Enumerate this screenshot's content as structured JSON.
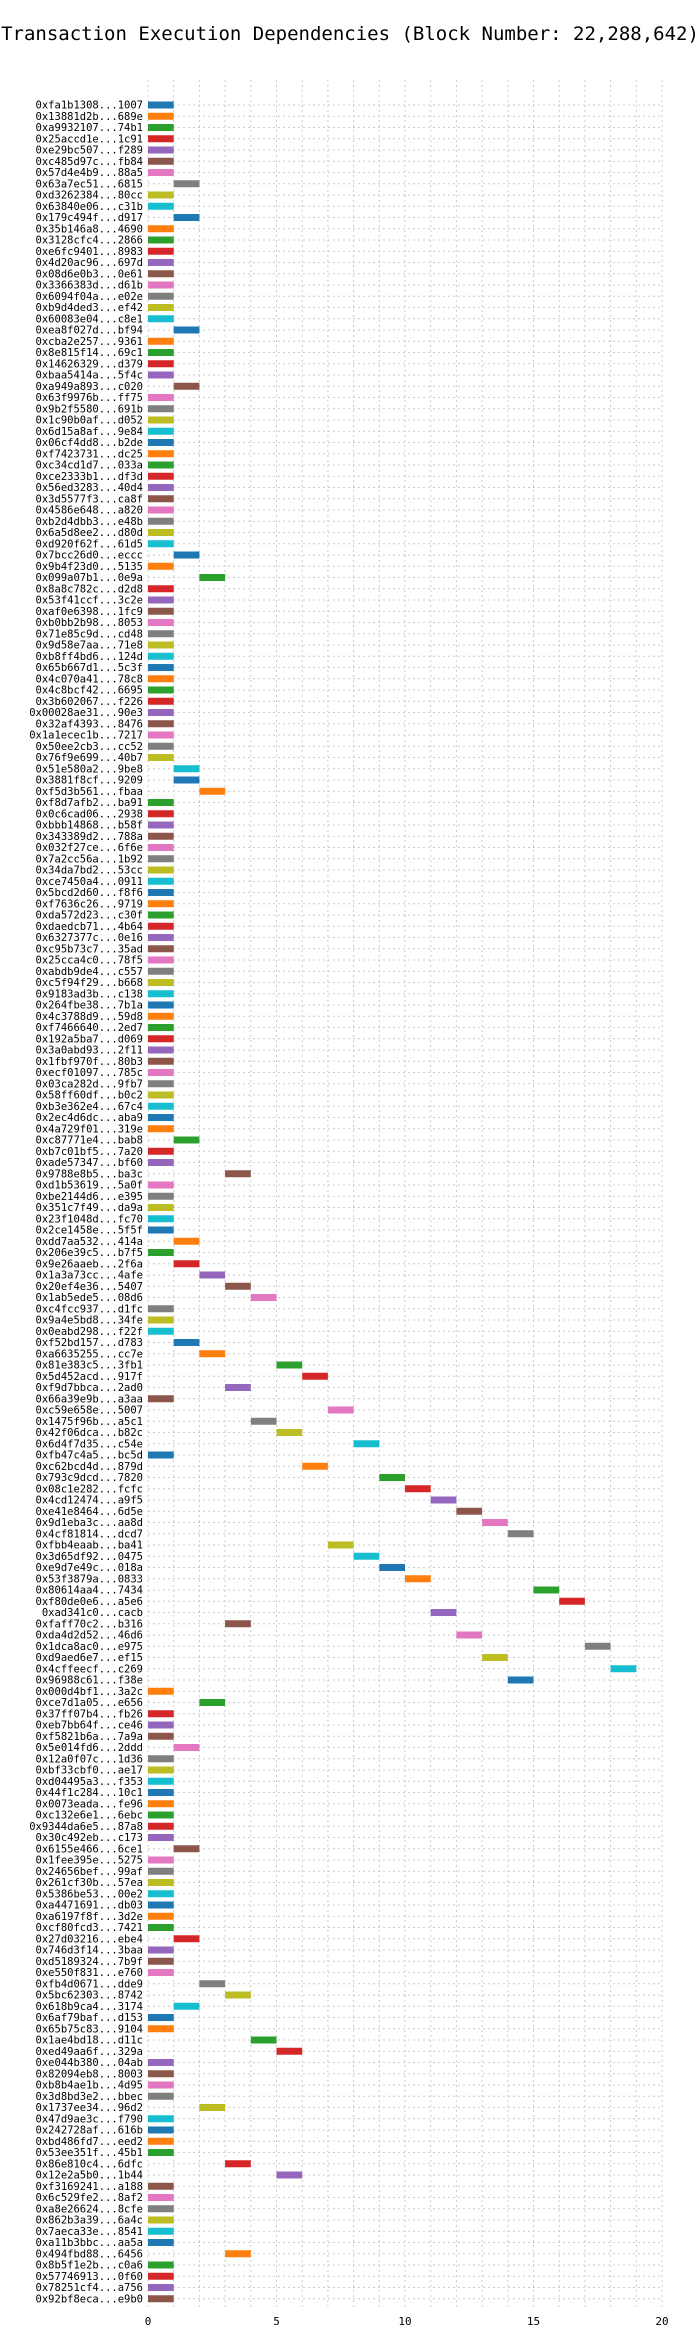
{
  "chart_data": {
    "type": "bar",
    "orientation": "horizontal",
    "title": "Transaction Execution Dependencies (Block Number: 22,288,642)",
    "xlabel": "",
    "ylabel": "",
    "xlim": [
      0,
      20
    ],
    "xticks": [
      "0",
      "5",
      "10",
      "15",
      "20"
    ],
    "grid": true,
    "palette": [
      "#1f77b4",
      "#ff7f0e",
      "#2ca02c",
      "#d62728",
      "#9467bd",
      "#8c564b",
      "#e377c2",
      "#7f7f7f",
      "#bcbd22",
      "#17becf"
    ],
    "categories": [
      "0xfa1b1308...1007",
      "0x13881d2b...689e",
      "0xa9932107...74b1",
      "0x25accd1e...1c91",
      "0xe29bc507...f289",
      "0xc485d97c...fb84",
      "0x57d4e4b9...88a5",
      "0x63a7ec51...6815",
      "0xd3262384...80cc",
      "0x63840e06...c31b",
      "0x179c494f...d917",
      "0x35b146a8...4690",
      "0x3128cfc4...2866",
      "0xe6fc9401...8983",
      "0x4d20ac96...697d",
      "0x08d6e0b3...0e61",
      "0x3366383d...d61b",
      "0x6094f04a...e02e",
      "0xb9d4ded3...ef42",
      "0x60083e04...c8e1",
      "0xea8f027d...bf94",
      "0xcba2e257...9361",
      "0x8e815f14...69c1",
      "0x14626329...d379",
      "0xbaa5414a...5f4c",
      "0xa949a893...c020",
      "0x63f9976b...ff75",
      "0x9b2f5580...691b",
      "0x1c90b0af...d052",
      "0x6d15a8af...9e84",
      "0x06cf4dd8...b2de",
      "0xf7423731...dc25",
      "0xc34cd1d7...033a",
      "0xce2333b1...df3d",
      "0x56ed3283...40d4",
      "0x3d5577f3...ca8f",
      "0x4586e648...a820",
      "0xb2d4dbb3...e48b",
      "0x6a5d8ee2...d80d",
      "0xd920f62f...61d5",
      "0x7bcc26d0...eccc",
      "0x9b4f23d0...5135",
      "0x099a07b1...0e9a",
      "0x8a8c782c...d2d8",
      "0x53f41ccf...3c2e",
      "0xaf0e6398...1fc9",
      "0xb0bb2b98...8053",
      "0x71e85c9d...cd48",
      "0x9d58e7aa...71e8",
      "0xb8ff4bd6...124d",
      "0x65b667d1...5c3f",
      "0x4c070a41...78c8",
      "0x4c8bcf42...6695",
      "0x3b602067...f226",
      "0x00028ae31...90e3",
      "0x32af4393...8476",
      "0x1a1ecec1b...7217",
      "0x50ee2cb3...cc52",
      "0x76f9e699...40b7",
      "0x51e580a2...9be8",
      "0x3881f8cf...9209",
      "0xf5d3b561...fbaa",
      "0xf8d7afb2...ba91",
      "0x0c6cad06...2938",
      "0xbbb14868...b58f",
      "0x343389d2...788a",
      "0x032f27ce...6f6e",
      "0x7a2cc56a...1b92",
      "0x34da7bd2...53cc",
      "0xce7450a4...0911",
      "0x5bcd2d60...f8f6",
      "0xf7636c26...9719",
      "0xda572d23...c30f",
      "0xdaedcb71...4b64",
      "0x6327377c...0e16",
      "0xc95b73c7...35ad",
      "0x25cca4c0...78f5",
      "0xabdb9de4...c557",
      "0xc5f94f29...b668",
      "0x9183ad3b...c138",
      "0x264fbe38...7b1a",
      "0x4c3788d9...59d8",
      "0xf7466640...2ed7",
      "0x192a5ba7...d069",
      "0x3a0abd93...2f11",
      "0x1fbf970f...80b3",
      "0xecf01097...785c",
      "0x03ca282d...9fb7",
      "0x58ff60df...b0c2",
      "0xb3e362e4...67c4",
      "0x2ec4d6dc...aba9",
      "0x4a729f01...319e",
      "0xc87771e4...bab8",
      "0xb7c01bf5...7a20",
      "0xade57347...bf60",
      "0x9788e8b5...ba3c",
      "0xd1b53619...5a0f",
      "0xbe2144d6...e395",
      "0x351c7f49...da9a",
      "0x23f1048d...fc70",
      "0x2ce1458e...5f5f",
      "0xdd7aa532...414a",
      "0x206e39c5...b7f5",
      "0x9e26aaeb...2f6a",
      "0x1a3a73cc...4afe",
      "0x20ef4e36...5407",
      "0x1ab5ede5...08d6",
      "0xc4fcc937...d1fc",
      "0x9a4e5bd8...34fe",
      "0x0eabd298...f22f",
      "0xf52bd157...d783",
      "0xa6635255...cc7e",
      "0x81e383c5...3fb1",
      "0x5d452acd...917f",
      "0xf9d7bbca...2ad0",
      "0x66a39e9b...a3aa",
      "0xc59e658e...5007",
      "0x1475f96b...a5c1",
      "0x42f06dca...b82c",
      "0x6d4f7d35...c54e",
      "0xfb47c4a5...bc5d",
      "0xc62bcd4d...879d",
      "0x793c9dcd...7820",
      "0x08c1e282...fcfc",
      "0x4cd12474...a9f5",
      "0xe41e8464...6d5e",
      "0x9d1eba3c...aa8d",
      "0x4cf81814...dcd7",
      "0xfbb4eaab...ba41",
      "0x3d65df92...0475",
      "0xe9d7e49c...018a",
      "0x53f3879a...0833",
      "0x80614aa4...7434",
      "0xf80de0e6...a5e6",
      "0xad341c0...cacb",
      "0xfaff70c2...b316",
      "0xda4d2d52...46d6",
      "0x1dca8ac0...e975",
      "0xd9aed6e7...ef15",
      "0x4cffeecf...c269",
      "0x96988c61...f38e",
      "0x000d4bf1...3a2c",
      "0xce7d1a05...e656",
      "0x37ff07b4...fb26",
      "0xeb7bb64f...ce46",
      "0xf5821b6a...7a9a",
      "0x5e014fd6...2ddd",
      "0x12a0f07c...1d36",
      "0xbf33cbf0...ae17",
      "0xd04495a3...f353",
      "0x44f1c284...10c1",
      "0x0073eada...fe96",
      "0xc132e6e1...6ebc",
      "0x9344da6e5...87a8",
      "0x30c492eb...c173",
      "0x6155e466...6ce1",
      "0x1fee395e...5275",
      "0x24656bef...99af",
      "0x261cf30b...57ea",
      "0x5386be53...00e2",
      "0xa4471691...db03",
      "0xa6197f8f...3d2e",
      "0xcf80fcd3...7421",
      "0x27d03216...ebe4",
      "0x746d3f14...3baa",
      "0xd5189324...7b9f",
      "0xe550f831...e760",
      "0xfb4d0671...dde9",
      "0x5bc62303...8742",
      "0x618b9ca4...3174",
      "0x6af79baf...d153",
      "0x65b75c83...9104",
      "0x1ae4bd18...d11c",
      "0xed49aa6f...329a",
      "0xe044b380...04ab",
      "0x82094eb8...8003",
      "0xb8b4ae1b...4d95",
      "0x3d8bd3e2...bbec",
      "0x1737ee34...96d2",
      "0x47d9ae3c...f790",
      "0x242728af...616b",
      "0xbd486fd7...eed2",
      "0x53ee351f...45b1",
      "0x86e810c4...6dfc",
      "0x12e2a5b0...1b44",
      "0xf3169241...a188",
      "0x6c529fe2...8af2",
      "0xa8e26624...8cfe",
      "0x862b3a39...6a4c",
      "0x7aeca33e...8541",
      "0xa11b3bbc...aa5a",
      "0x494fbd88...6456",
      "0x8b5f1e2b...c0a6",
      "0x57746913...0f60",
      "0x78251cf4...a756",
      "0x92bf8eca...e9b0"
    ],
    "series": [
      {
        "values": [
          [
            0,
            1
          ],
          [
            0,
            1
          ],
          [
            0,
            1
          ],
          [
            0,
            1
          ],
          [
            0,
            1
          ],
          [
            0,
            1
          ],
          [
            0,
            1
          ],
          [
            1,
            2
          ],
          [
            0,
            1
          ],
          [
            0,
            1
          ],
          [
            1,
            2
          ],
          [
            0,
            1
          ],
          [
            0,
            1
          ],
          [
            0,
            1
          ],
          [
            0,
            1
          ],
          [
            0,
            1
          ],
          [
            0,
            1
          ],
          [
            0,
            1
          ],
          [
            0,
            1
          ],
          [
            0,
            1
          ],
          [
            1,
            2
          ],
          [
            0,
            1
          ],
          [
            0,
            1
          ],
          [
            0,
            1
          ],
          [
            0,
            1
          ],
          [
            1,
            2
          ],
          [
            0,
            1
          ],
          [
            0,
            1
          ],
          [
            0,
            1
          ],
          [
            0,
            1
          ],
          [
            0,
            1
          ],
          [
            0,
            1
          ],
          [
            0,
            1
          ],
          [
            0,
            1
          ],
          [
            0,
            1
          ],
          [
            0,
            1
          ],
          [
            0,
            1
          ],
          [
            0,
            1
          ],
          [
            0,
            1
          ],
          [
            0,
            1
          ],
          [
            1,
            2
          ],
          [
            0,
            1
          ],
          [
            2,
            3
          ],
          [
            0,
            1
          ],
          [
            0,
            1
          ],
          [
            0,
            1
          ],
          [
            0,
            1
          ],
          [
            0,
            1
          ],
          [
            0,
            1
          ],
          [
            0,
            1
          ],
          [
            0,
            1
          ],
          [
            0,
            1
          ],
          [
            0,
            1
          ],
          [
            0,
            1
          ],
          [
            0,
            1
          ],
          [
            0,
            1
          ],
          [
            0,
            1
          ],
          [
            0,
            1
          ],
          [
            0,
            1
          ],
          [
            1,
            2
          ],
          [
            1,
            2
          ],
          [
            2,
            3
          ],
          [
            0,
            1
          ],
          [
            0,
            1
          ],
          [
            0,
            1
          ],
          [
            0,
            1
          ],
          [
            0,
            1
          ],
          [
            0,
            1
          ],
          [
            0,
            1
          ],
          [
            0,
            1
          ],
          [
            0,
            1
          ],
          [
            0,
            1
          ],
          [
            0,
            1
          ],
          [
            0,
            1
          ],
          [
            0,
            1
          ],
          [
            0,
            1
          ],
          [
            0,
            1
          ],
          [
            0,
            1
          ],
          [
            0,
            1
          ],
          [
            0,
            1
          ],
          [
            0,
            1
          ],
          [
            0,
            1
          ],
          [
            0,
            1
          ],
          [
            0,
            1
          ],
          [
            0,
            1
          ],
          [
            0,
            1
          ],
          [
            0,
            1
          ],
          [
            0,
            1
          ],
          [
            0,
            1
          ],
          [
            0,
            1
          ],
          [
            0,
            1
          ],
          [
            0,
            1
          ],
          [
            1,
            2
          ],
          [
            0,
            1
          ],
          [
            0,
            1
          ],
          [
            3,
            4
          ],
          [
            0,
            1
          ],
          [
            0,
            1
          ],
          [
            0,
            1
          ],
          [
            0,
            1
          ],
          [
            0,
            1
          ],
          [
            1,
            2
          ],
          [
            0,
            1
          ],
          [
            1,
            2
          ],
          [
            2,
            3
          ],
          [
            3,
            4
          ],
          [
            4,
            5
          ],
          [
            0,
            1
          ],
          [
            0,
            1
          ],
          [
            0,
            1
          ],
          [
            1,
            2
          ],
          [
            2,
            3
          ],
          [
            5,
            6
          ],
          [
            6,
            7
          ],
          [
            3,
            4
          ],
          [
            0,
            1
          ],
          [
            7,
            8
          ],
          [
            4,
            5
          ],
          [
            5,
            6
          ],
          [
            8,
            9
          ],
          [
            0,
            1
          ],
          [
            6,
            7
          ],
          [
            9,
            10
          ],
          [
            10,
            11
          ],
          [
            11,
            12
          ],
          [
            12,
            13
          ],
          [
            13,
            14
          ],
          [
            14,
            15
          ],
          [
            7,
            8
          ],
          [
            8,
            9
          ],
          [
            9,
            10
          ],
          [
            10,
            11
          ],
          [
            15,
            16
          ],
          [
            16,
            17
          ],
          [
            11,
            12
          ],
          [
            3,
            4
          ],
          [
            12,
            13
          ],
          [
            17,
            18
          ],
          [
            13,
            14
          ],
          [
            18,
            19
          ],
          [
            14,
            15
          ],
          [
            0,
            1
          ],
          [
            2,
            3
          ],
          [
            0,
            1
          ],
          [
            0,
            1
          ],
          [
            0,
            1
          ],
          [
            1,
            2
          ],
          [
            0,
            1
          ],
          [
            0,
            1
          ],
          [
            0,
            1
          ],
          [
            0,
            1
          ],
          [
            0,
            1
          ],
          [
            0,
            1
          ],
          [
            0,
            1
          ],
          [
            0,
            1
          ],
          [
            1,
            2
          ],
          [
            0,
            1
          ],
          [
            0,
            1
          ],
          [
            0,
            1
          ],
          [
            0,
            1
          ],
          [
            0,
            1
          ],
          [
            0,
            1
          ],
          [
            0,
            1
          ],
          [
            1,
            2
          ],
          [
            0,
            1
          ],
          [
            0,
            1
          ],
          [
            0,
            1
          ],
          [
            2,
            3
          ],
          [
            3,
            4
          ],
          [
            1,
            2
          ],
          [
            0,
            1
          ],
          [
            0,
            1
          ],
          [
            4,
            5
          ],
          [
            5,
            6
          ],
          [
            0,
            1
          ],
          [
            0,
            1
          ],
          [
            0,
            1
          ],
          [
            0,
            1
          ],
          [
            2,
            3
          ],
          [
            0,
            1
          ],
          [
            0,
            1
          ],
          [
            0,
            1
          ],
          [
            0,
            1
          ],
          [
            3,
            4
          ],
          [
            5,
            6
          ],
          [
            0,
            1
          ],
          [
            0,
            1
          ],
          [
            0,
            1
          ],
          [
            0,
            1
          ],
          [
            0,
            1
          ],
          [
            0,
            1
          ],
          [
            3,
            4
          ],
          [
            0,
            1
          ],
          [
            0,
            1
          ],
          [
            0,
            1
          ],
          [
            0,
            1
          ]
        ]
      }
    ]
  }
}
